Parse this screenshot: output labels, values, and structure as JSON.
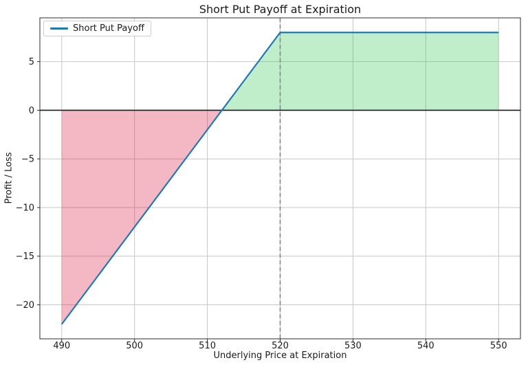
{
  "chart_data": {
    "type": "line",
    "title": "Short Put Payoff at Expiration",
    "xlabel": "Underlying Price at Expiration",
    "ylabel": "Profit / Loss",
    "xlim": [
      487,
      553
    ],
    "ylim": [
      -23.5,
      9.5
    ],
    "x_ticks": [
      490,
      500,
      510,
      520,
      530,
      540,
      550
    ],
    "y_ticks": [
      -20,
      -15,
      -10,
      -5,
      0,
      5
    ],
    "grid": true,
    "legend": {
      "label": "Short Put Payoff",
      "position": "upper-left"
    },
    "series": [
      {
        "name": "Short Put Payoff",
        "color": "#1f77b4",
        "x": [
          490,
          520,
          550
        ],
        "y": [
          -22,
          8,
          8
        ]
      }
    ],
    "reference_lines": [
      {
        "name": "zero-profit-line",
        "axis": "y",
        "value": 0,
        "style": "solid",
        "color": "#1a1a1a"
      },
      {
        "name": "strike-price-line",
        "axis": "x",
        "value": 520,
        "style": "dashed",
        "color": "#8a8a8a"
      }
    ],
    "fill_regions": [
      {
        "name": "loss-region",
        "color": "rgba(220,20,60,0.30)",
        "polygon": [
          [
            490,
            0
          ],
          [
            512,
            0
          ],
          [
            490,
            -22
          ]
        ]
      },
      {
        "name": "profit-region",
        "color": "rgba(60,200,90,0.32)",
        "polygon": [
          [
            512,
            0
          ],
          [
            520,
            8
          ],
          [
            550,
            8
          ],
          [
            550,
            0
          ]
        ]
      }
    ],
    "key_points": {
      "strike_price": 520,
      "breakeven_price": 512,
      "max_profit": 8,
      "payoff_at_490": -22
    }
  }
}
